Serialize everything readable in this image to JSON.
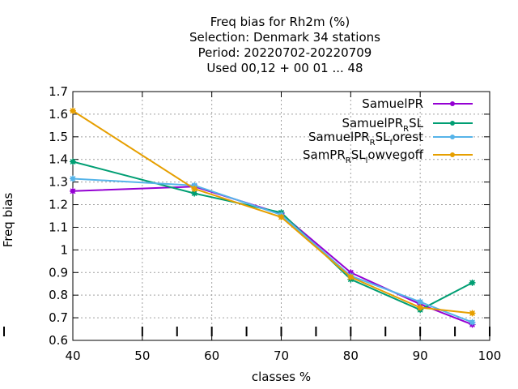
{
  "chart_data": {
    "type": "line",
    "title_lines": [
      "Freq bias  for Rh2m (%)",
      "Selection: Denmark      34 stations",
      "Period: 20220702-20220709",
      "Used  00,12  + 00 01 ... 48"
    ],
    "xlabel": "classes %",
    "ylabel": "Freq bias",
    "xlim": [
      40,
      100
    ],
    "ylim": [
      0.6,
      1.7
    ],
    "xticks": [
      40,
      50,
      60,
      70,
      80,
      90,
      100
    ],
    "yticks": [
      0.6,
      0.7,
      0.8,
      0.9,
      1,
      1.1,
      1.2,
      1.3,
      1.4,
      1.5,
      1.6,
      1.7
    ],
    "ytick_labels": [
      "0.6",
      "0.7",
      "0.8",
      "0.9",
      "1",
      "1.1",
      "1.2",
      "1.3",
      "1.4",
      "1.5",
      "1.6",
      "1.7"
    ],
    "grid": true,
    "legend_position": "top-right",
    "series": [
      {
        "name": "SamuelPR",
        "legend": {
          "pre": "SamuelPR",
          "sub": "",
          "post": ""
        },
        "color": "#9400d3",
        "x": [
          40,
          57.5,
          70,
          80,
          90,
          97.5
        ],
        "y": [
          1.26,
          1.28,
          1.16,
          0.9,
          0.76,
          0.67
        ]
      },
      {
        "name": "SamuelPR_RSL",
        "legend": {
          "pre": "SamuelPR",
          "sub": "R",
          "post": "SL"
        },
        "color": "#009e73",
        "x": [
          40,
          57.5,
          70,
          80,
          90,
          97.5
        ],
        "y": [
          1.39,
          1.25,
          1.165,
          0.87,
          0.735,
          0.855
        ]
      },
      {
        "name": "SamuelPR_RSL_forest",
        "legend": {
          "pre": "SamuelPR",
          "sub": "R",
          "post": "SL",
          "sub2": "f",
          "post2": "orest"
        },
        "color": "#56b4e9",
        "x": [
          40,
          57.5,
          70,
          80,
          90,
          97.5
        ],
        "y": [
          1.315,
          1.285,
          1.155,
          0.885,
          0.77,
          0.68
        ]
      },
      {
        "name": "SamPR_RSL_lowvegoff",
        "legend": {
          "pre": "SamPR",
          "sub": "R",
          "post": "SL",
          "sub2": "l",
          "post2": "owvegoff"
        },
        "color": "#e69f00",
        "x": [
          40,
          57.5,
          70,
          80,
          90,
          97.5
        ],
        "y": [
          1.615,
          1.27,
          1.145,
          0.88,
          0.745,
          0.72
        ]
      }
    ],
    "class_markers_x": [
      40,
      50,
      55,
      60,
      65,
      70,
      75,
      80,
      85,
      90,
      95,
      100
    ]
  }
}
